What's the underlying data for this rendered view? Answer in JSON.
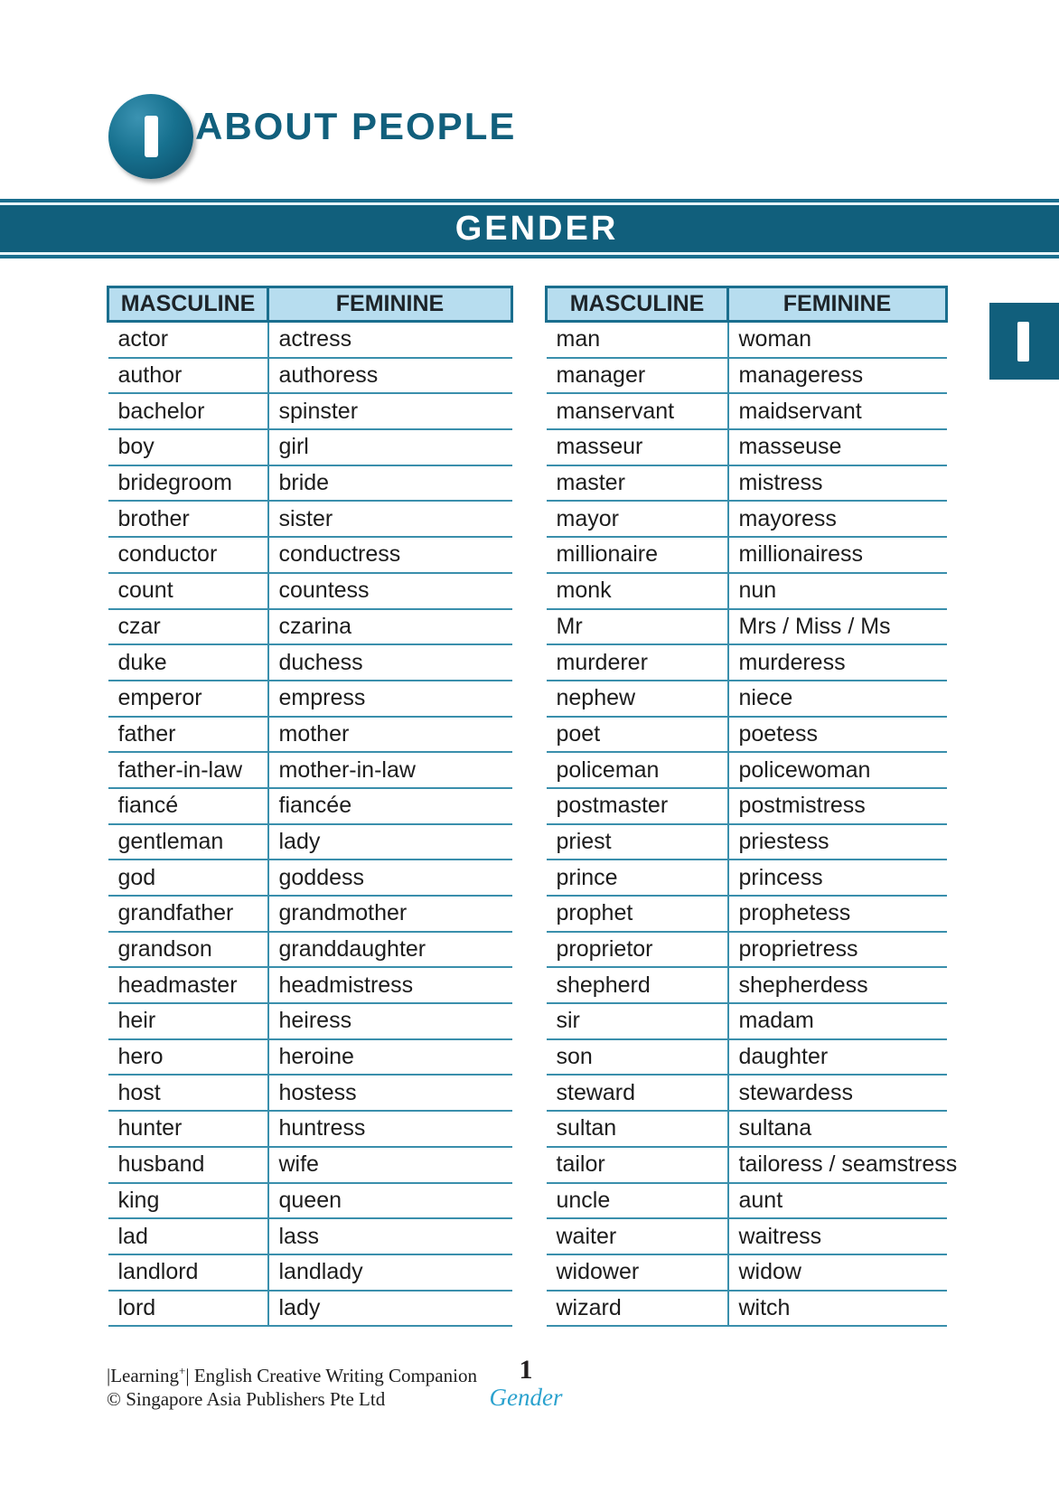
{
  "page": {
    "chapter_badge_number": "1",
    "chapter_title": "ABOUT PEOPLE",
    "section_banner": "GENDER",
    "side_tab_number": "1"
  },
  "tables": {
    "left": {
      "headers": [
        "MASCULINE",
        "FEMININE"
      ],
      "rows": [
        [
          "actor",
          "actress"
        ],
        [
          "author",
          "authoress"
        ],
        [
          "bachelor",
          "spinster"
        ],
        [
          "boy",
          "girl"
        ],
        [
          "bridegroom",
          "bride"
        ],
        [
          "brother",
          "sister"
        ],
        [
          "conductor",
          "conductress"
        ],
        [
          "count",
          "countess"
        ],
        [
          "czar",
          "czarina"
        ],
        [
          "duke",
          "duchess"
        ],
        [
          "emperor",
          "empress"
        ],
        [
          "father",
          "mother"
        ],
        [
          "father-in-law",
          "mother-in-law"
        ],
        [
          "fiancé",
          "fiancée"
        ],
        [
          "gentleman",
          "lady"
        ],
        [
          "god",
          "goddess"
        ],
        [
          "grandfather",
          "grandmother"
        ],
        [
          "grandson",
          "granddaughter"
        ],
        [
          "headmaster",
          "headmistress"
        ],
        [
          "heir",
          "heiress"
        ],
        [
          "hero",
          "heroine"
        ],
        [
          "host",
          "hostess"
        ],
        [
          "hunter",
          "huntress"
        ],
        [
          "husband",
          "wife"
        ],
        [
          "king",
          "queen"
        ],
        [
          "lad",
          "lass"
        ],
        [
          "landlord",
          "landlady"
        ],
        [
          "lord",
          "lady"
        ]
      ]
    },
    "right": {
      "headers": [
        "MASCULINE",
        "FEMININE"
      ],
      "rows": [
        [
          "man",
          "woman"
        ],
        [
          "manager",
          "manageress"
        ],
        [
          "manservant",
          "maidservant"
        ],
        [
          "masseur",
          "masseuse"
        ],
        [
          "master",
          "mistress"
        ],
        [
          "mayor",
          "mayoress"
        ],
        [
          "millionaire",
          "millionairess"
        ],
        [
          "monk",
          "nun"
        ],
        [
          "Mr",
          "Mrs / Miss / Ms"
        ],
        [
          "murderer",
          "murderess"
        ],
        [
          "nephew",
          "niece"
        ],
        [
          "poet",
          "poetess"
        ],
        [
          "policeman",
          "policewoman"
        ],
        [
          "postmaster",
          "postmistress"
        ],
        [
          "priest",
          "priestess"
        ],
        [
          "prince",
          "princess"
        ],
        [
          "prophet",
          "prophetess"
        ],
        [
          "proprietor",
          "proprietress"
        ],
        [
          "shepherd",
          "shepherdess"
        ],
        [
          "sir",
          "madam"
        ],
        [
          "son",
          "daughter"
        ],
        [
          "steward",
          "stewardess"
        ],
        [
          "sultan",
          "sultana"
        ],
        [
          "tailor",
          "tailoress / seamstress"
        ],
        [
          "uncle",
          "aunt"
        ],
        [
          "waiter",
          "waitress"
        ],
        [
          "widower",
          "widow"
        ],
        [
          "wizard",
          "witch"
        ]
      ]
    }
  },
  "footer": {
    "imprint_open": "|Learning",
    "imprint_sup": "+",
    "imprint_rest": "| English Creative Writing Companion",
    "copyright": "© Singapore Asia Publishers Pte Ltd",
    "page_number": "1",
    "section_name": "Gender"
  },
  "colors": {
    "teal": "#115f7c",
    "header_border": "#1a6e8e",
    "row_line": "#3a8fac",
    "header_bg": "#b7ddef",
    "accent_text": "#2ba2ce"
  }
}
